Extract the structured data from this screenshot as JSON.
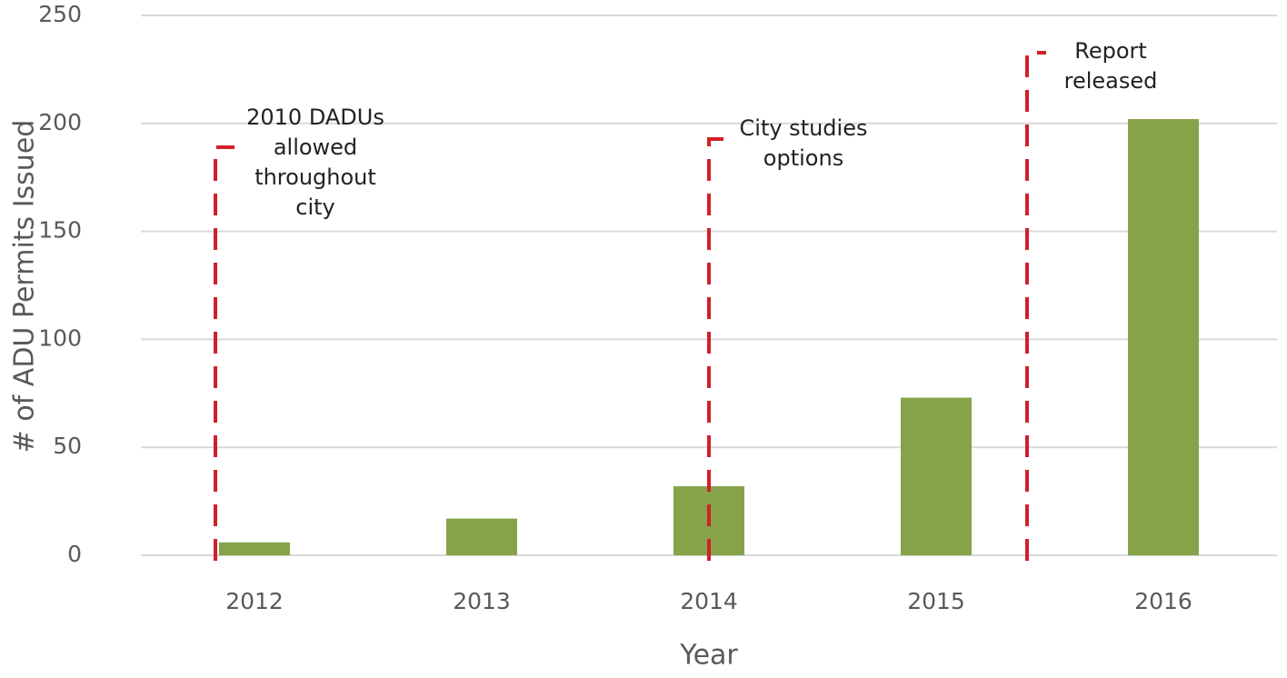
{
  "chart_data": {
    "type": "bar",
    "x_label": "Year",
    "y_label": "# of ADU Permits Issued",
    "categories": [
      "2012",
      "2013",
      "2014",
      "2015",
      "2016"
    ],
    "values": [
      6,
      17,
      32,
      73,
      202
    ],
    "color": "#86a34a",
    "ylim": [
      0,
      250
    ],
    "yticks": [
      0,
      50,
      100,
      150,
      200,
      250
    ],
    "grid": true,
    "annotations": [
      {
        "lines": [
          "2010 DADUs",
          "allowed",
          "throughout",
          "city"
        ]
      },
      {
        "lines": [
          "City studies",
          "options"
        ]
      },
      {
        "lines": [
          "Report",
          "released"
        ]
      }
    ],
    "annotation_color": "#d0202a"
  }
}
